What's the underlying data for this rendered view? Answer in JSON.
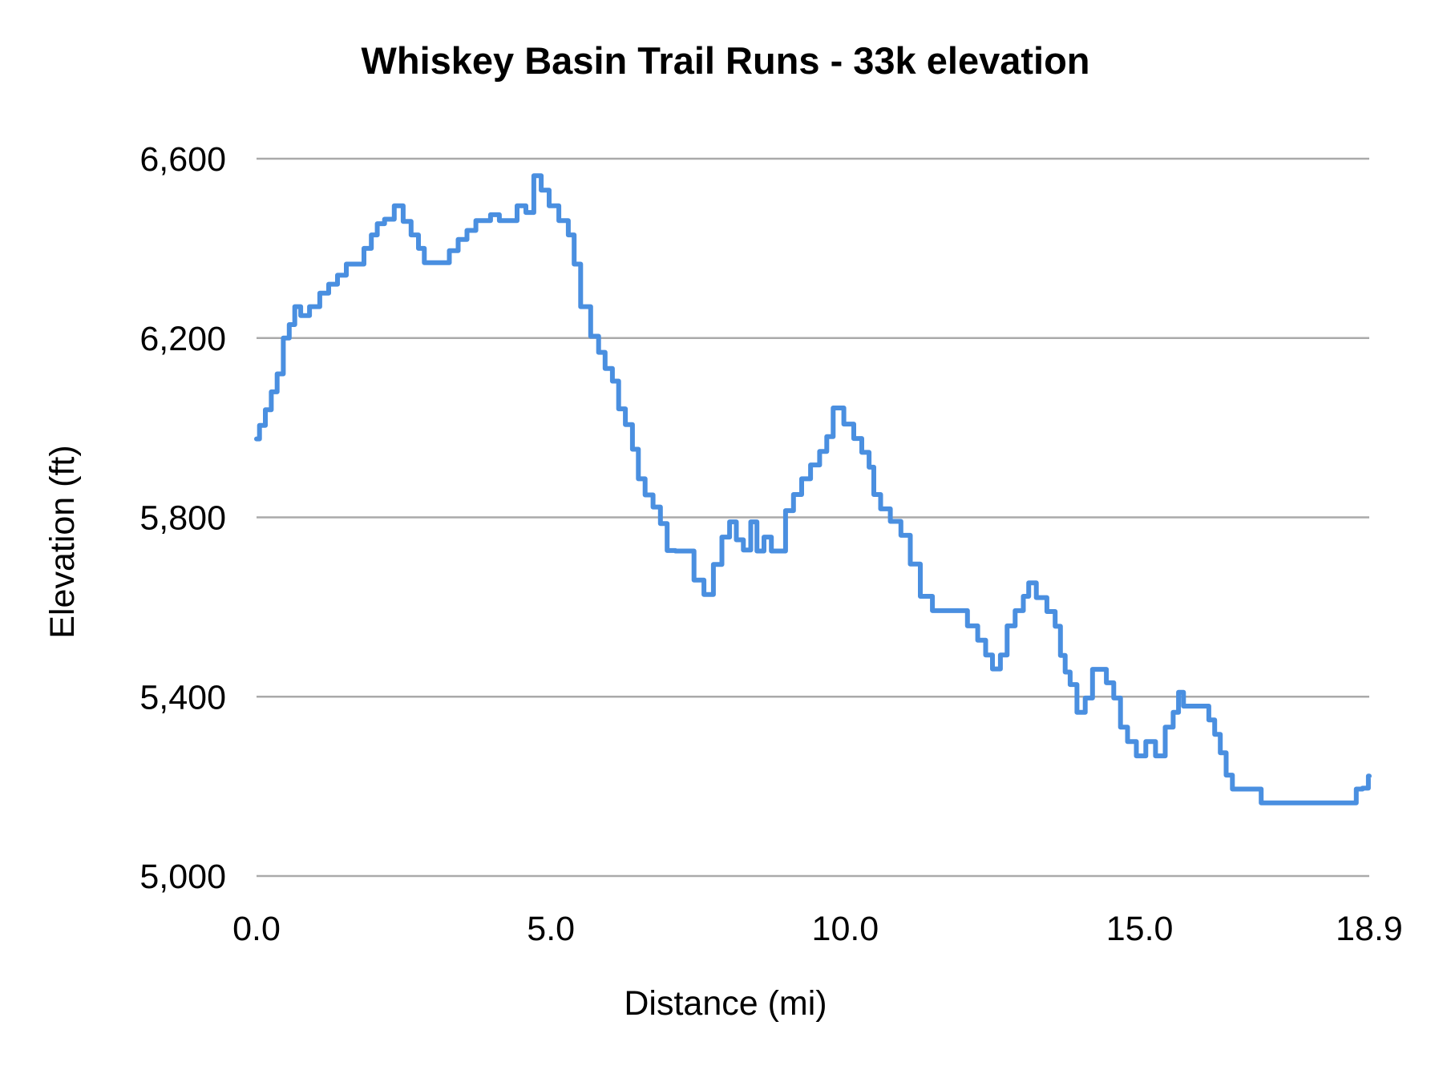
{
  "chart_data": {
    "type": "line",
    "title": "Whiskey Basin Trail Runs - 33k elevation",
    "xlabel": "Distance (mi)",
    "ylabel": "Elevation (ft)",
    "xlim": [
      0,
      18.9
    ],
    "ylim": [
      5000,
      6600
    ],
    "xticks": [
      "0.0",
      "5.0",
      "10.0",
      "15.0",
      "18.9"
    ],
    "xtick_values": [
      0,
      5,
      10,
      15,
      18.9
    ],
    "yticks": [
      "6,600",
      "6,200",
      "5,800",
      "5,400",
      "5,000"
    ],
    "ytick_values": [
      6600,
      6200,
      5800,
      5400,
      5000
    ],
    "grid": {
      "horizontal": true,
      "vertical": false
    },
    "legend": null,
    "colors": {
      "series": "#4A8FE0",
      "grid": "#AAAAAA"
    },
    "series": [
      {
        "name": "Elevation",
        "x": [
          0.0,
          0.1,
          0.2,
          0.3,
          0.4,
          0.51,
          0.6,
          0.7,
          0.8,
          1.0,
          1.15,
          1.3,
          1.45,
          1.6,
          1.75,
          1.9,
          2.0,
          2.1,
          2.25,
          2.43,
          2.55,
          2.7,
          2.8,
          2.9,
          3.05,
          3.2,
          3.35,
          3.5,
          3.65,
          3.8,
          3.9,
          4.05,
          4.2,
          4.35,
          4.5,
          4.65,
          4.77,
          4.9,
          5.04,
          5.23,
          5.36,
          5.43,
          5.58,
          5.77,
          5.85,
          5.99,
          6.1,
          6.2,
          6.33,
          6.44,
          6.53,
          6.67,
          6.8,
          6.92,
          7.03,
          7.2,
          7.34,
          7.52,
          7.68,
          7.84,
          7.97,
          8.1,
          8.2,
          8.34,
          8.45,
          8.55,
          8.69,
          8.8,
          8.92,
          9.05,
          9.19,
          9.33,
          9.49,
          9.64,
          9.73,
          9.86,
          10.09,
          10.2,
          10.36,
          10.45,
          10.52,
          10.68,
          10.85,
          11.04,
          11.17,
          11.38,
          11.58,
          11.99,
          12.16,
          12.34,
          12.43,
          12.57,
          12.7,
          12.8,
          12.97,
          13.08,
          13.15,
          13.34,
          13.51,
          13.62,
          13.69,
          13.78,
          13.86,
          14.01,
          14.14,
          14.26,
          14.37,
          14.5,
          14.62,
          14.73,
          14.86,
          15.03,
          15.18,
          15.36,
          15.51,
          15.63,
          15.69,
          15.8,
          16.1,
          16.25,
          16.3,
          16.44,
          16.5,
          16.65,
          17.06,
          17.07,
          18.66,
          18.7,
          18.87,
          18.9
        ],
        "y": [
          5975,
          6005,
          6040,
          6080,
          6120,
          6200,
          6230,
          6270,
          6250,
          6270,
          6300,
          6320,
          6340,
          6365,
          6365,
          6400,
          6430,
          6455,
          6465,
          6495,
          6460,
          6430,
          6400,
          6368,
          6368,
          6368,
          6395,
          6420,
          6440,
          6462,
          6462,
          6475,
          6462,
          6462,
          6495,
          6480,
          6562,
          6530,
          6495,
          6462,
          6430,
          6365,
          6270,
          6204,
          6168,
          6132,
          6104,
          6042,
          6007,
          5952,
          5886,
          5850,
          5823,
          5786,
          5726,
          5725,
          5725,
          5660,
          5628,
          5695,
          5756,
          5790,
          5750,
          5727,
          5790,
          5725,
          5756,
          5725,
          5725,
          5815,
          5851,
          5886,
          5917,
          5947,
          5980,
          6044,
          6008,
          5976,
          5945,
          5912,
          5851,
          5819,
          5791,
          5760,
          5696,
          5624,
          5592,
          5592,
          5558,
          5526,
          5493,
          5462,
          5493,
          5558,
          5592,
          5624,
          5654,
          5621,
          5590,
          5557,
          5492,
          5455,
          5427,
          5365,
          5397,
          5461,
          5461,
          5431,
          5397,
          5332,
          5300,
          5268,
          5300,
          5268,
          5332,
          5365,
          5410,
          5379,
          5379,
          5348,
          5316,
          5275,
          5225,
          5194,
          5194,
          5163,
          5163,
          5194,
          5196,
          5223
        ]
      }
    ]
  }
}
